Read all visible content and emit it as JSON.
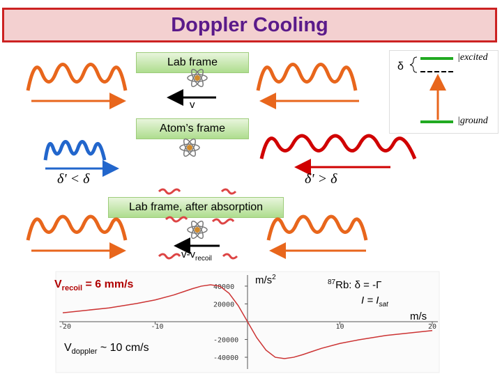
{
  "title": "Doppler Cooling",
  "lab_frame_label": "Lab frame",
  "atoms_frame_label": "Atom’s frame",
  "after_absorption_label": "Lab frame, after absorption",
  "velocity_label": "v",
  "velocity_after": {
    "v": "v-v",
    "sub": "recoil"
  },
  "delta_symbol": "δ",
  "level_labels": {
    "excited": "|excited",
    "ground": "|ground"
  },
  "delta_prime_less": "δ' < δ",
  "delta_prime_greater": "δ' > δ",
  "v_recoil": {
    "v": "V",
    "sub": "recoil",
    "rest": " = 6 mm/s"
  },
  "v_doppler": {
    "v": "V",
    "sub": "doppler",
    "rest": " ~ 10 cm/s"
  },
  "rb_conditions": {
    "sup": "87",
    "line1": "Rb: δ = -Γ",
    "line2": "I = I",
    "line2_sub": "sat"
  },
  "force_units": {
    "main": "m/s",
    "sup": "2"
  },
  "velocity_units": "m/s",
  "chart_data": {
    "type": "line",
    "title": "",
    "xlabel": "m/s",
    "ylabel": "m/s²",
    "x_ticks": [
      "-20",
      "-10",
      "10",
      "20"
    ],
    "y_ticks": [
      "40000",
      "20000",
      "-20000",
      "-40000"
    ],
    "xlim": [
      -20,
      20
    ],
    "ylim": [
      -47000,
      47000
    ],
    "series": [
      {
        "x": [
          -20,
          -15,
          -12,
          -10,
          -8,
          -7,
          -6,
          -5,
          -4,
          -3,
          -2,
          -1,
          0,
          1,
          2,
          3,
          4,
          5,
          6,
          7,
          8,
          10,
          12,
          15,
          20
        ],
        "y": [
          10000,
          15500,
          20500,
          24500,
          30000,
          33500,
          37000,
          40000,
          41500,
          40000,
          32000,
          18000,
          0,
          -18000,
          -32000,
          -40000,
          -41500,
          -40000,
          -37000,
          -33500,
          -30000,
          -24500,
          -20500,
          -15500,
          -10000
        ],
        "color": "#cc3333"
      }
    ]
  }
}
